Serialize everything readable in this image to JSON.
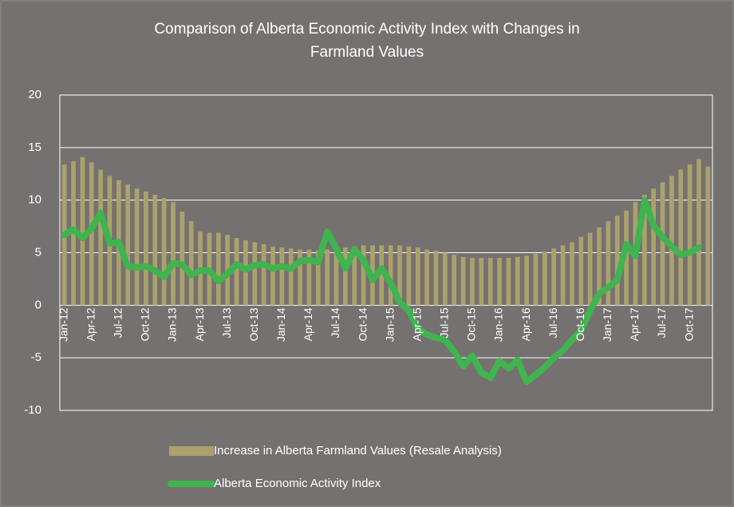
{
  "chart_data": {
    "type": "combo",
    "title": "Comparison of Alberta Economic Activity Index with Changes in Farmland Values",
    "categories": [
      "Jan-12",
      null,
      null,
      "Apr-12",
      null,
      null,
      "Jul-12",
      null,
      null,
      "Oct-12",
      null,
      null,
      "Jan-13",
      null,
      null,
      "Apr-13",
      null,
      null,
      "Jul-13",
      null,
      null,
      "Oct-13",
      null,
      null,
      "Jan-14",
      null,
      null,
      "Apr-14",
      null,
      null,
      "Jul-14",
      null,
      null,
      "Oct-14",
      null,
      null,
      "Jan-15",
      null,
      null,
      "Apr-15",
      null,
      null,
      "Jul-15",
      null,
      null,
      "Oct-15",
      null,
      null,
      "Jan-16",
      null,
      null,
      "Apr-16",
      null,
      null,
      "Jul-16",
      null,
      null,
      "Oct-16",
      null,
      null,
      "Jan-17",
      null,
      null,
      "Apr-17",
      null,
      null,
      "Jul-17",
      null,
      null,
      "Oct-17",
      null,
      null
    ],
    "series": [
      {
        "name": "Increase in Alberta Farmland Values (Resale Analysis)",
        "type": "bar",
        "color": "#aba26b",
        "values": [
          13.4,
          13.7,
          14.1,
          13.6,
          12.9,
          12.3,
          11.9,
          11.5,
          11.1,
          10.8,
          10.5,
          10.2,
          9.8,
          8.9,
          8.0,
          7.0,
          6.9,
          6.9,
          6.7,
          6.4,
          6.2,
          6.0,
          5.8,
          5.6,
          5.5,
          5.4,
          5.3,
          5.3,
          5.2,
          5.3,
          5.4,
          5.5,
          5.6,
          5.7,
          5.7,
          5.7,
          5.7,
          5.7,
          5.6,
          5.5,
          5.3,
          5.2,
          5.0,
          4.8,
          4.6,
          4.5,
          4.5,
          4.5,
          4.5,
          4.5,
          4.6,
          4.7,
          4.9,
          5.1,
          5.4,
          5.7,
          6.0,
          6.5,
          6.9,
          7.4,
          8.0,
          8.5,
          9.0,
          9.8,
          10.5,
          11.1,
          11.7,
          12.3,
          12.9,
          13.4,
          13.9,
          13.2
        ]
      },
      {
        "name": "Alberta Economic Activity Index",
        "type": "line",
        "color": "#3fb44f",
        "values": [
          6.7,
          7.2,
          6.4,
          7.3,
          8.8,
          5.9,
          6.0,
          3.7,
          3.6,
          3.7,
          3.3,
          2.7,
          4.0,
          3.9,
          2.9,
          3.3,
          3.3,
          2.3,
          3.0,
          3.9,
          3.4,
          3.8,
          3.9,
          3.5,
          3.7,
          3.5,
          4.2,
          4.3,
          4.1,
          7.0,
          5.4,
          3.5,
          5.3,
          4.3,
          2.4,
          3.5,
          2.1,
          0.3,
          -0.5,
          -2.2,
          -2.8,
          -3.1,
          -3.3,
          -4.4,
          -5.8,
          -4.8,
          -6.4,
          -6.9,
          -5.3,
          -6.0,
          -5.2,
          -7.3,
          -6.6,
          -5.9,
          -5.0,
          -4.3,
          -3.3,
          -2.4,
          -0.5,
          1.1,
          1.7,
          2.4,
          5.8,
          4.7,
          10.0,
          7.6,
          6.5,
          5.6,
          4.8,
          5.0,
          5.5,
          null
        ]
      }
    ],
    "ylim": [
      -10,
      20
    ],
    "yticks": [
      -10,
      -5,
      0,
      5,
      10,
      15,
      20
    ],
    "grid": true
  }
}
